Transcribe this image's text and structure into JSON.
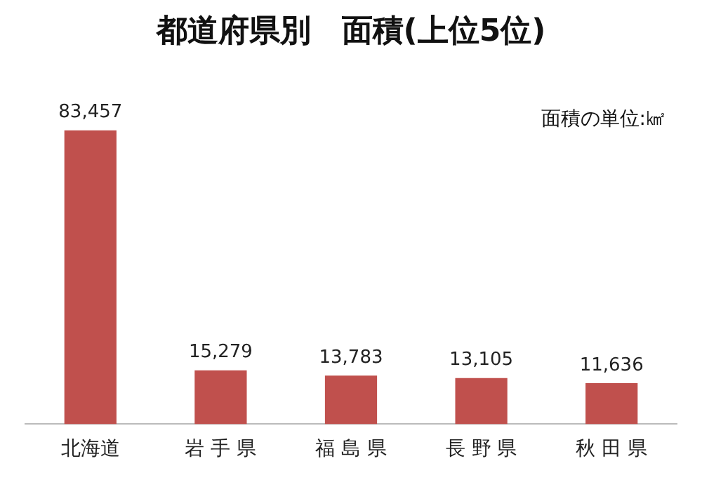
{
  "chart_data": {
    "type": "bar",
    "title": "都道府県別　面積(上位5位)",
    "categories": [
      "北海道",
      "岩 手 県",
      "福 島 県",
      "長 野 県",
      "秋 田 県"
    ],
    "values": [
      83457,
      15279,
      13783,
      13105,
      11636
    ],
    "color": "#c0504d",
    "value_labels": [
      "83,457",
      "15,279",
      "13,783",
      "13,105",
      "11,636"
    ],
    "annotations": [
      "面積の単位:㎢"
    ],
    "grid": false,
    "legend": false
  }
}
